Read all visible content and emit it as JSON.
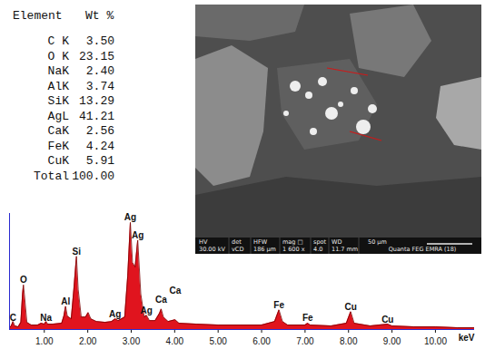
{
  "chart_data": {
    "type": "area",
    "color": "#e0141e",
    "x": [
      0.2,
      0.24,
      0.28,
      0.32,
      0.4,
      0.46,
      0.5,
      0.52,
      0.54,
      0.6,
      0.7,
      0.85,
      0.93,
      1.0,
      1.04,
      1.08,
      1.2,
      1.4,
      1.45,
      1.49,
      1.53,
      1.62,
      1.68,
      1.74,
      1.78,
      1.85,
      1.95,
      2.01,
      2.07,
      2.2,
      2.4,
      2.55,
      2.63,
      2.7,
      2.85,
      2.92,
      2.98,
      3.03,
      3.09,
      3.15,
      3.22,
      3.3,
      3.35,
      3.42,
      3.55,
      3.65,
      3.69,
      3.74,
      3.85,
      4.01,
      4.1,
      4.5,
      5.0,
      5.5,
      6.0,
      6.3,
      6.4,
      6.48,
      6.6,
      7.0,
      7.06,
      7.12,
      7.6,
      7.95,
      8.05,
      8.13,
      8.5,
      8.9,
      9.0,
      9.5,
      10.0,
      10.5,
      10.9
    ],
    "values": [
      2,
      4,
      9,
      4,
      3,
      8,
      40,
      50,
      40,
      8,
      5,
      5,
      7,
      6,
      9,
      6,
      6,
      7,
      15,
      26,
      15,
      12,
      45,
      82,
      45,
      14,
      14,
      19,
      12,
      9,
      8,
      9,
      12,
      10,
      14,
      60,
      120,
      75,
      70,
      100,
      40,
      14,
      16,
      10,
      10,
      18,
      23,
      14,
      9,
      11,
      7,
      6,
      5,
      5,
      5,
      9,
      22,
      9,
      5,
      5,
      7,
      5,
      4,
      7,
      20,
      7,
      4,
      6,
      4,
      3,
      3,
      2,
      2
    ],
    "xlim": [
      0.2,
      10.9
    ],
    "xticks": [
      {
        "value": 1,
        "label": "1.00"
      },
      {
        "value": 2,
        "label": "2.00"
      },
      {
        "value": 3,
        "label": "3.00"
      },
      {
        "value": 4,
        "label": "4.00"
      },
      {
        "value": 5,
        "label": "5.00"
      },
      {
        "value": 6,
        "label": "6.00"
      },
      {
        "value": 7,
        "label": "7.00"
      },
      {
        "value": 8,
        "label": "8.00"
      },
      {
        "value": 9,
        "label": "9.00"
      },
      {
        "value": 10,
        "label": "10.00"
      }
    ],
    "x_label": "keV",
    "ylim": [
      0,
      130
    ],
    "yticks": [],
    "tick_labels": "x",
    "annotations": [
      {
        "text": "C",
        "x": 0.28,
        "y": 10
      },
      {
        "text": "O",
        "x": 0.52,
        "y": 52
      },
      {
        "text": "Na",
        "x": 1.04,
        "y": 10
      },
      {
        "text": "Al",
        "x": 1.49,
        "y": 28
      },
      {
        "text": "Si",
        "x": 1.74,
        "y": 84
      },
      {
        "text": "Ag",
        "x": 2.63,
        "y": 14
      },
      {
        "text": "Ag",
        "x": 2.98,
        "y": 122
      },
      {
        "text": "Ag",
        "x": 3.15,
        "y": 102
      },
      {
        "text": "Ag",
        "x": 3.35,
        "y": 18
      },
      {
        "text": "Ca",
        "x": 3.69,
        "y": 30
      },
      {
        "text": "Ca",
        "x": 4.01,
        "y": 40
      },
      {
        "text": "Fe",
        "x": 6.4,
        "y": 24
      },
      {
        "text": "Fe",
        "x": 7.06,
        "y": 10
      },
      {
        "text": "Cu",
        "x": 8.05,
        "y": 22
      },
      {
        "text": "Cu",
        "x": 8.9,
        "y": 8
      }
    ]
  },
  "table": {
    "header": [
      "Element",
      "Wt %"
    ],
    "rows": [
      [
        "C K",
        "3.50"
      ],
      [
        "O K",
        "23.15"
      ],
      [
        "NaK",
        "2.40"
      ],
      [
        "AlK",
        "3.74"
      ],
      [
        "SiK",
        "13.29"
      ],
      [
        "AgL",
        "41.21"
      ],
      [
        "CaK",
        "2.56"
      ],
      [
        "FeK",
        "4.24"
      ],
      [
        "CuK",
        "5.91"
      ],
      [
        "Total",
        "100.00"
      ]
    ]
  },
  "micrograph": {
    "info_bar": [
      {
        "label": "HV",
        "value": "30.00 kV"
      },
      {
        "label": "det",
        "value": "vCD"
      },
      {
        "label": "HFW",
        "value": "186 µm"
      },
      {
        "label": "mag □",
        "value": "1 600 x"
      },
      {
        "label": "spot",
        "value": "4.0"
      },
      {
        "label": "WD",
        "value": "11.7 mm"
      }
    ],
    "scale_bar": "50 µm",
    "instrument": "Quanta FEG EMRA (18)"
  }
}
